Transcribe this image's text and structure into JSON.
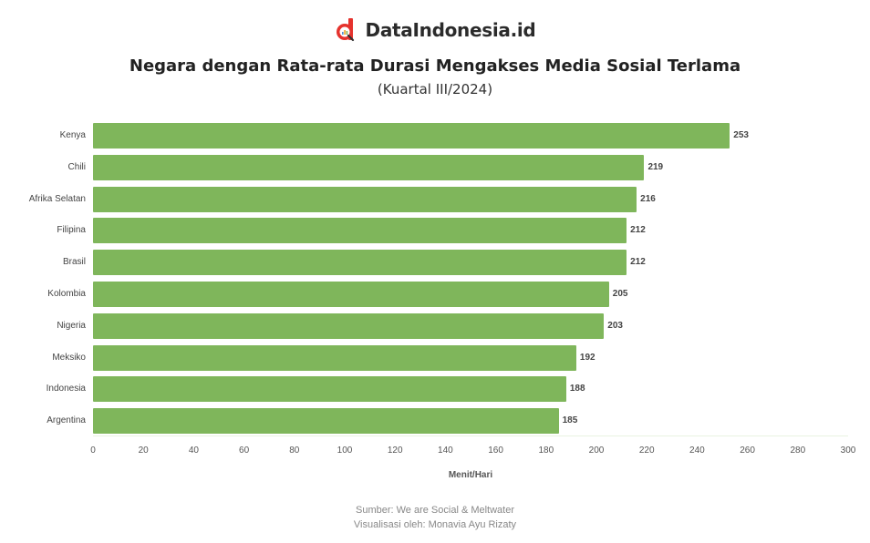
{
  "brand": {
    "name": "DataIndonesia.id",
    "logo_icon": "d-magnifier-logo-icon",
    "logo_color": "#e5322d"
  },
  "header": {
    "title": "Negara dengan Rata-rata Durasi Mengakses Media Sosial Terlama",
    "subtitle": "(Kuartal III/2024)"
  },
  "chart_data": {
    "type": "bar",
    "orientation": "horizontal",
    "title": "Negara dengan Rata-rata Durasi Mengakses Media Sosial Terlama",
    "subtitle": "(Kuartal III/2024)",
    "categories": [
      "Kenya",
      "Chili",
      "Afrika Selatan",
      "Filipina",
      "Brasil",
      "Kolombia",
      "Nigeria",
      "Meksiko",
      "Indonesia",
      "Argentina"
    ],
    "values": [
      253,
      219,
      216,
      212,
      212,
      205,
      203,
      192,
      188,
      185
    ],
    "xlabel": "Menit/Hari",
    "ylabel": "",
    "xlim": [
      0,
      300
    ],
    "xticks": [
      0,
      20,
      40,
      60,
      80,
      100,
      120,
      140,
      160,
      180,
      200,
      220,
      240,
      260,
      280,
      300
    ],
    "bar_color": "#7fb65b",
    "grid": false,
    "legend": null,
    "data_labels": true
  },
  "footer": {
    "source": "Sumber: We are Social & Meltwater",
    "credit": "Visualisasi oleh: Monavia Ayu Rizaty"
  }
}
